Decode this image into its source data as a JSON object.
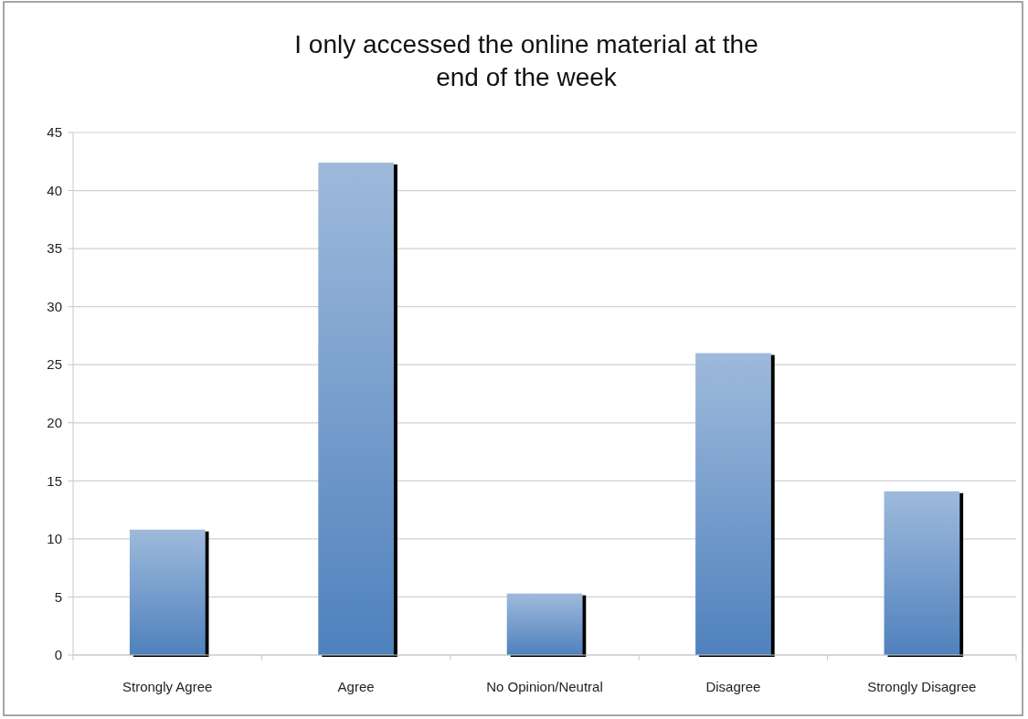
{
  "chart_data": {
    "type": "bar",
    "title": "I only accessed the online material at the end of the week",
    "categories": [
      "Strongly Agree",
      "Agree",
      "No Opinion/Neutral",
      "Disagree",
      "Strongly Disagree"
    ],
    "values": [
      10.8,
      42.4,
      5.3,
      26.0,
      14.1
    ],
    "color": "#4f81bd",
    "ylim": [
      0,
      45
    ],
    "yticks": [
      0,
      5,
      10,
      15,
      20,
      25,
      30,
      35,
      40,
      45
    ],
    "grid": "y"
  }
}
